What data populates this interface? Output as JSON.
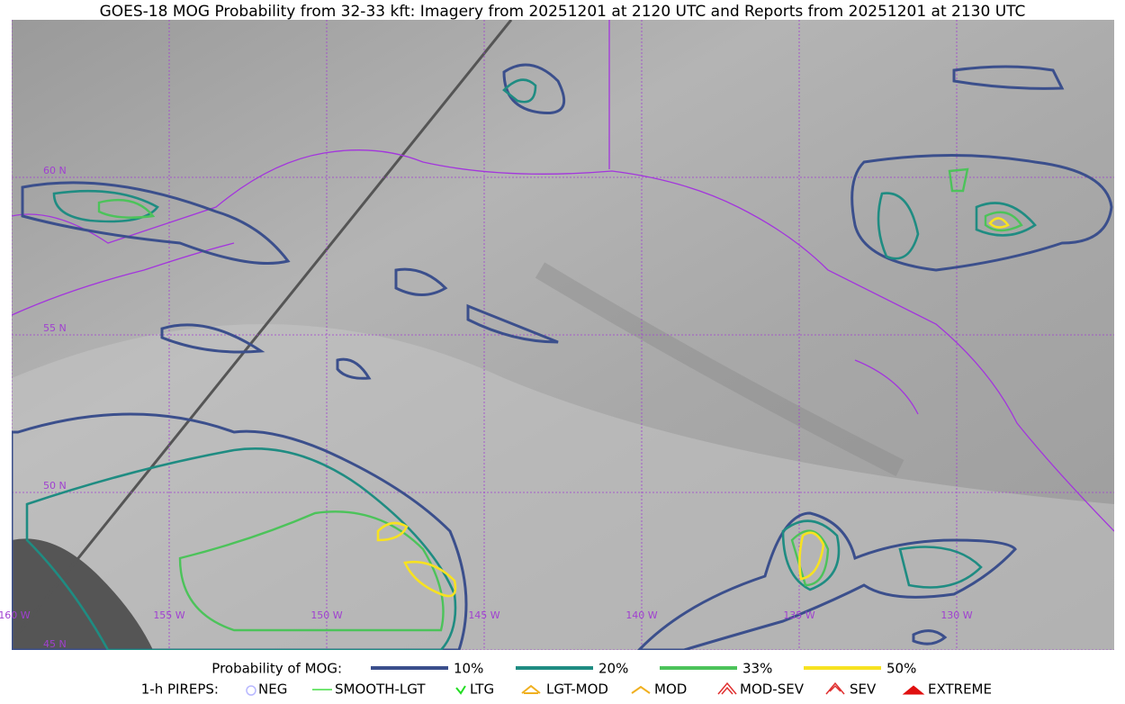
{
  "title": "GOES-18 MOG Probability from 32-33 kft: Imagery from 20251201 at 2120 UTC and Reports from 20251201 at 2130 UTC",
  "map": {
    "lat_labels": [
      "60 N",
      "55 N",
      "50 N",
      "45 N"
    ],
    "lon_labels": [
      "160 W",
      "155 W",
      "150 W",
      "145 W",
      "140 W",
      "135 W",
      "130 W"
    ]
  },
  "legend": {
    "probability": {
      "label": "Probability of MOG:",
      "items": [
        {
          "label": "10%",
          "color": "#3b4f8c"
        },
        {
          "label": "20%",
          "color": "#1f8c82"
        },
        {
          "label": "33%",
          "color": "#4cc35a"
        },
        {
          "label": "50%",
          "color": "#f7e221"
        }
      ]
    },
    "pireps": {
      "label": "1-h PIREPS:",
      "items": [
        "NEG",
        "SMOOTH-LGT",
        "LTG",
        "LGT-MOD",
        "MOD",
        "MOD-SEV",
        "SEV",
        "EXTREME"
      ]
    }
  }
}
